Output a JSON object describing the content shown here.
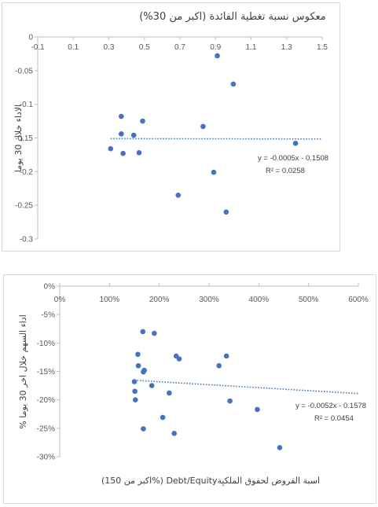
{
  "chart_data": [
    {
      "type": "scatter",
      "title": "معكوس نسبة تغطية الفائدة  (اكبر من 30%)",
      "xlabel": "",
      "ylabel": "الاداء خلال 30 يوما",
      "xlim": [
        -0.1,
        1.5
      ],
      "ylim": [
        -0.3,
        0
      ],
      "x_ticks": [
        "-0.1",
        "0.1",
        "0.3",
        "0.5",
        "0.7",
        "0.9",
        "1.1",
        "1.3",
        "1.5"
      ],
      "x_tick_values": [
        -0.1,
        0.1,
        0.3,
        0.5,
        0.7,
        0.9,
        1.1,
        1.3,
        1.5
      ],
      "y_ticks": [
        "0",
        "-0.05",
        "-0.1",
        "-0.15",
        "-0.2",
        "-0.25",
        "-0.3"
      ],
      "y_tick_values": [
        0,
        -0.05,
        -0.1,
        -0.15,
        -0.2,
        -0.25,
        -0.3
      ],
      "grid": false,
      "series": [
        {
          "color": "#4472c4",
          "points": [
            {
              "x": 0.31,
              "y": -0.166
            },
            {
              "x": 0.37,
              "y": -0.118
            },
            {
              "x": 0.37,
              "y": -0.144
            },
            {
              "x": 0.38,
              "y": -0.173
            },
            {
              "x": 0.44,
              "y": -0.146
            },
            {
              "x": 0.47,
              "y": -0.172
            },
            {
              "x": 0.49,
              "y": -0.125
            },
            {
              "x": 0.69,
              "y": -0.235
            },
            {
              "x": 0.83,
              "y": -0.133
            },
            {
              "x": 0.89,
              "y": -0.201
            },
            {
              "x": 0.91,
              "y": -0.028
            },
            {
              "x": 0.96,
              "y": -0.26
            },
            {
              "x": 1.0,
              "y": -0.07
            },
            {
              "x": 1.35,
              "y": -0.158
            }
          ]
        }
      ],
      "trendline": {
        "type": "linear",
        "slope": -0.0005,
        "intercept": -0.1508,
        "color": "#4472c4"
      },
      "annotations": [
        "y = -0.0005x - 0.1508",
        "R² = 0.0258"
      ]
    },
    {
      "type": "scatter",
      "title": "",
      "xlabel": "(اكبر من 150%)  Debt/Equityاسبة القروض لحقوق الملكيِة",
      "ylabel": "% اداء السهم خلال اخر 30 يوما",
      "xlim": [
        0,
        6
      ],
      "ylim": [
        -0.3,
        0
      ],
      "x_ticks": [
        "0%",
        "100%",
        "200%",
        "300%",
        "400%",
        "500%",
        "600%"
      ],
      "x_tick_values": [
        0,
        1,
        2,
        3,
        4,
        5,
        6
      ],
      "y_ticks": [
        "0%",
        "-5%",
        "-10%",
        "-15%",
        "-20%",
        "-25%",
        "-30%"
      ],
      "y_tick_values": [
        0,
        -0.05,
        -0.1,
        -0.15,
        -0.2,
        -0.25,
        -0.3
      ],
      "grid": false,
      "series": [
        {
          "color": "#4472c4",
          "points": [
            {
              "x": 1.5,
              "y": -0.168
            },
            {
              "x": 1.51,
              "y": -0.185
            },
            {
              "x": 1.52,
              "y": -0.2
            },
            {
              "x": 1.57,
              "y": -0.12
            },
            {
              "x": 1.58,
              "y": -0.14
            },
            {
              "x": 1.67,
              "y": -0.08
            },
            {
              "x": 1.68,
              "y": -0.151
            },
            {
              "x": 1.7,
              "y": -0.148
            },
            {
              "x": 1.68,
              "y": -0.251
            },
            {
              "x": 1.85,
              "y": -0.175
            },
            {
              "x": 1.9,
              "y": -0.083
            },
            {
              "x": 2.07,
              "y": -0.231
            },
            {
              "x": 2.2,
              "y": -0.188
            },
            {
              "x": 2.3,
              "y": -0.259
            },
            {
              "x": 2.34,
              "y": -0.123
            },
            {
              "x": 2.4,
              "y": -0.128
            },
            {
              "x": 3.2,
              "y": -0.14
            },
            {
              "x": 3.35,
              "y": -0.123
            },
            {
              "x": 3.42,
              "y": -0.202
            },
            {
              "x": 3.97,
              "y": -0.217
            },
            {
              "x": 4.42,
              "y": -0.284
            }
          ]
        }
      ],
      "trendline": {
        "type": "linear",
        "slope": -0.0052,
        "intercept": -0.1578,
        "color": "#4472c4"
      },
      "annotations": [
        "y = -0.0052x - 0.1578",
        "R² = 0.0454"
      ]
    }
  ]
}
